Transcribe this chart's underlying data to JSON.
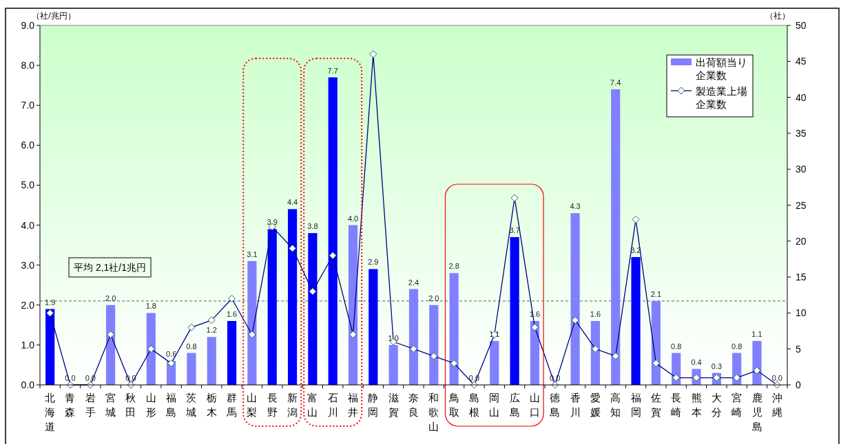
{
  "chart_data": {
    "type": "bar",
    "categories": [
      "北海道",
      "青森",
      "岩手",
      "宮城",
      "秋田",
      "山形",
      "福島",
      "茨城",
      "栃木",
      "群馬",
      "山梨",
      "長野",
      "新潟",
      "富山",
      "石川",
      "福井",
      "静岡",
      "滋賀",
      "奈良",
      "和歌山",
      "鳥取",
      "島根",
      "岡山",
      "広島",
      "山口",
      "徳島",
      "香川",
      "愛媛",
      "高知",
      "福岡",
      "佐賀",
      "長崎",
      "熊本",
      "大分",
      "宮崎",
      "鹿児島",
      "沖縄"
    ],
    "series": [
      {
        "name": "出荷額当り企業数",
        "color": "#8080ff",
        "value_labels": [
          "1.9",
          "0.0",
          "0.0",
          "2.0",
          "0.0",
          "1.8",
          "0.6",
          "0.8",
          "1.2",
          "1.6",
          "3.1",
          "3.9",
          "4.4",
          "3.8",
          "7.7",
          "4.0",
          "2.9",
          "1.0",
          "2.4",
          "2.0",
          "2.8",
          "0.0",
          "1.1",
          "3.7",
          "1.6",
          "0.0",
          "4.3",
          "1.6",
          "7.4",
          "3.2",
          "2.1",
          "0.8",
          "0.4",
          "0.3",
          "0.8",
          "1.1",
          "0.0"
        ],
        "colors": [
          "#0000ff",
          "#8080ff",
          "#8080ff",
          "#8080ff",
          "#8080ff",
          "#8080ff",
          "#8080ff",
          "#8080ff",
          "#8080ff",
          "#0000ff",
          "#8080ff",
          "#0000ff",
          "#0000ff",
          "#0000ff",
          "#0000ff",
          "#8080ff",
          "#0000ff",
          "#8080ff",
          "#8080ff",
          "#8080ff",
          "#8080ff",
          "#8080ff",
          "#8080ff",
          "#0000ff",
          "#8080ff",
          "#8080ff",
          "#8080ff",
          "#8080ff",
          "#8080ff",
          "#0000ff",
          "#8080ff",
          "#8080ff",
          "#8080ff",
          "#8080ff",
          "#8080ff",
          "#8080ff",
          "#8080ff"
        ],
        "values": [
          1.9,
          0,
          0,
          2.0,
          0,
          1.8,
          0.6,
          0.8,
          1.2,
          1.6,
          3.1,
          3.9,
          4.4,
          3.8,
          7.7,
          4.0,
          2.9,
          1.0,
          2.4,
          2.0,
          2.8,
          0,
          1.1,
          3.7,
          1.6,
          0,
          4.3,
          1.6,
          7.4,
          3.2,
          2.1,
          0.8,
          0.4,
          0.3,
          0.8,
          1.1,
          0
        ]
      },
      {
        "name": "製造業上場企業数",
        "type": "line",
        "axis": "y2",
        "color": "#000080",
        "marker": "diamond",
        "values": [
          10,
          0,
          0,
          7,
          0,
          5,
          3,
          8,
          9,
          12,
          7,
          22,
          19,
          13,
          18,
          7,
          46,
          6,
          5,
          4,
          3,
          0,
          7,
          26,
          8,
          0,
          9,
          5,
          4,
          23,
          3,
          1,
          1,
          1,
          1,
          2,
          0
        ]
      }
    ],
    "ylabel": "（社/兆円）",
    "y2label": "（社）",
    "ylim": [
      0,
      9
    ],
    "yticks": [
      {
        "value": 0,
        "label": "0.0"
      },
      {
        "value": 1,
        "label": "1.0"
      },
      {
        "value": 2,
        "label": "2.0"
      },
      {
        "value": 3,
        "label": "3.0"
      },
      {
        "value": 4,
        "label": "4.0"
      },
      {
        "value": 5,
        "label": "5.0"
      },
      {
        "value": 6,
        "label": "6.0"
      },
      {
        "value": 7,
        "label": "7.0"
      },
      {
        "value": 8,
        "label": "8.0"
      },
      {
        "value": 9,
        "label": "9.0"
      }
    ],
    "y2lim": [
      0,
      50
    ],
    "y2ticks": [
      0,
      5,
      10,
      15,
      20,
      25,
      30,
      35,
      40,
      45,
      50
    ],
    "ref_lines": [
      {
        "axis": "y",
        "value": 2.1,
        "color": "#5f8f8f",
        "line_style": "dashed"
      }
    ],
    "annotations": [
      "平均  2,1社/1兆円"
    ],
    "legend": "top right"
  }
}
